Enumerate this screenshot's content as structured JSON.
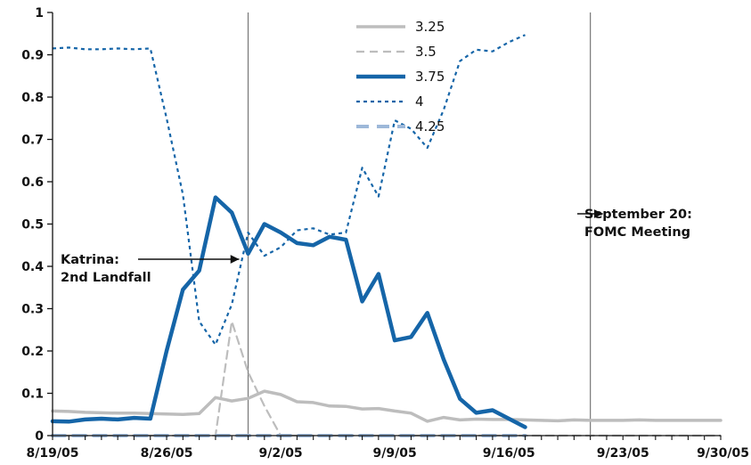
{
  "chart_data": {
    "type": "line",
    "title": "",
    "xlabel": "",
    "ylabel": "",
    "ylim": [
      0,
      1
    ],
    "xlim": [
      0,
      41
    ],
    "grid": false,
    "legend_position": "top-center",
    "y_ticks": [
      0,
      0.1,
      0.2,
      0.3,
      0.4,
      0.5,
      0.6,
      0.7,
      0.8,
      0.9,
      1
    ],
    "y_tick_labels": [
      "0",
      "0.1",
      "0.2",
      "0.3",
      "0.4",
      "0.5",
      "0.6",
      "0.7",
      "0.8",
      "0.9",
      "1"
    ],
    "x_tick_labels": [
      {
        "label": "8/19/05",
        "x": 0
      },
      {
        "label": "8/26/05",
        "x": 7
      },
      {
        "label": "9/2/05",
        "x": 14
      },
      {
        "label": "9/9/05",
        "x": 21
      },
      {
        "label": "9/16/05",
        "x": 28
      },
      {
        "label": "9/23/05",
        "x": 35
      },
      {
        "label": "9/30/05",
        "x": 42
      }
    ],
    "series": [
      {
        "name": "3.25",
        "color": "#bdbdbd",
        "style": "solid-thin",
        "points": [
          [
            0,
            0.058
          ],
          [
            1,
            0.057
          ],
          [
            2,
            0.055
          ],
          [
            3,
            0.054
          ],
          [
            4,
            0.053
          ],
          [
            5,
            0.053
          ],
          [
            6,
            0.052
          ],
          [
            7,
            0.051
          ],
          [
            8,
            0.05
          ],
          [
            9,
            0.052
          ],
          [
            10,
            0.09
          ],
          [
            11,
            0.082
          ],
          [
            12,
            0.088
          ],
          [
            13,
            0.105
          ],
          [
            14,
            0.097
          ],
          [
            15,
            0.08
          ],
          [
            16,
            0.078
          ],
          [
            17,
            0.07
          ],
          [
            18,
            0.069
          ],
          [
            19,
            0.063
          ],
          [
            20,
            0.064
          ],
          [
            21,
            0.058
          ],
          [
            22,
            0.053
          ],
          [
            23,
            0.034
          ],
          [
            24,
            0.043
          ],
          [
            25,
            0.037
          ],
          [
            26,
            0.039
          ],
          [
            27,
            0.038
          ],
          [
            28,
            0.038
          ],
          [
            29,
            0.037
          ],
          [
            30,
            0.036
          ],
          [
            31,
            0.035
          ],
          [
            32,
            0.037
          ],
          [
            33,
            0.036
          ],
          [
            34,
            0.036
          ],
          [
            35,
            0.036
          ],
          [
            36,
            0.037
          ],
          [
            37,
            0.036
          ],
          [
            38,
            0.036
          ],
          [
            39,
            0.036
          ],
          [
            40,
            0.036
          ],
          [
            41,
            0.036
          ]
        ]
      },
      {
        "name": "3.5",
        "color": "#bdbdbd",
        "style": "dashed-thin",
        "points": [
          [
            0,
            0
          ],
          [
            1,
            0
          ],
          [
            2,
            0
          ],
          [
            3,
            0
          ],
          [
            4,
            0
          ],
          [
            5,
            0
          ],
          [
            6,
            0
          ],
          [
            7,
            0
          ],
          [
            8,
            0
          ],
          [
            9,
            0
          ],
          [
            10,
            0
          ],
          [
            11,
            0.27
          ],
          [
            12,
            0.15
          ],
          [
            13,
            0.07
          ],
          [
            14,
            0
          ],
          [
            15,
            0
          ],
          [
            16,
            0
          ],
          [
            17,
            0
          ],
          [
            18,
            0
          ],
          [
            19,
            0
          ],
          [
            20,
            0
          ],
          [
            21,
            0
          ],
          [
            22,
            0
          ],
          [
            23,
            0
          ],
          [
            24,
            0
          ],
          [
            25,
            0
          ],
          [
            26,
            0
          ],
          [
            27,
            0
          ],
          [
            28,
            0
          ],
          [
            29,
            0
          ],
          [
            30,
            0
          ],
          [
            31,
            0
          ],
          [
            32,
            0
          ],
          [
            33,
            0
          ],
          [
            34,
            0
          ],
          [
            35,
            0
          ],
          [
            36,
            0
          ],
          [
            37,
            0
          ],
          [
            38,
            0
          ],
          [
            39,
            0
          ],
          [
            40,
            0
          ],
          [
            41,
            0
          ]
        ]
      },
      {
        "name": "3.75",
        "color": "#1565a8",
        "style": "solid-thick",
        "points": [
          [
            0,
            0.034
          ],
          [
            1,
            0.033
          ],
          [
            2,
            0.038
          ],
          [
            3,
            0.04
          ],
          [
            4,
            0.038
          ],
          [
            5,
            0.042
          ],
          [
            6,
            0.04
          ],
          [
            7,
            0.2
          ],
          [
            8,
            0.345
          ],
          [
            9,
            0.39
          ],
          [
            10,
            0.563
          ],
          [
            11,
            0.527
          ],
          [
            12,
            0.43
          ],
          [
            13,
            0.5
          ],
          [
            14,
            0.48
          ],
          [
            15,
            0.455
          ],
          [
            16,
            0.45
          ],
          [
            17,
            0.47
          ],
          [
            18,
            0.463
          ],
          [
            19,
            0.317
          ],
          [
            20,
            0.382
          ],
          [
            21,
            0.225
          ],
          [
            22,
            0.233
          ],
          [
            23,
            0.29
          ],
          [
            24,
            0.18
          ],
          [
            25,
            0.087
          ],
          [
            26,
            0.054
          ],
          [
            27,
            0.06
          ],
          [
            28,
            0.04
          ],
          [
            29,
            0.02
          ]
        ]
      },
      {
        "name": "4",
        "color": "#1565a8",
        "style": "dotted",
        "points": [
          [
            0,
            0.915
          ],
          [
            1,
            0.917
          ],
          [
            2,
            0.913
          ],
          [
            3,
            0.913
          ],
          [
            4,
            0.915
          ],
          [
            5,
            0.913
          ],
          [
            6,
            0.915
          ],
          [
            7,
            0.75
          ],
          [
            8,
            0.57
          ],
          [
            9,
            0.27
          ],
          [
            10,
            0.215
          ],
          [
            11,
            0.31
          ],
          [
            12,
            0.48
          ],
          [
            13,
            0.425
          ],
          [
            14,
            0.445
          ],
          [
            15,
            0.485
          ],
          [
            16,
            0.49
          ],
          [
            17,
            0.475
          ],
          [
            18,
            0.48
          ],
          [
            19,
            0.633
          ],
          [
            20,
            0.565
          ],
          [
            21,
            0.745
          ],
          [
            22,
            0.725
          ],
          [
            23,
            0.68
          ],
          [
            24,
            0.77
          ],
          [
            25,
            0.885
          ],
          [
            26,
            0.912
          ],
          [
            27,
            0.908
          ],
          [
            28,
            0.93
          ],
          [
            29,
            0.947
          ]
        ]
      },
      {
        "name": "4.25",
        "color": "#9db8d9",
        "style": "dashed-thick",
        "points": [
          [
            0,
            0
          ],
          [
            1,
            0
          ],
          [
            2,
            0
          ],
          [
            3,
            0
          ],
          [
            4,
            0
          ],
          [
            5,
            0
          ],
          [
            6,
            0
          ],
          [
            7,
            0
          ],
          [
            8,
            0
          ],
          [
            9,
            0
          ],
          [
            10,
            0
          ],
          [
            11,
            0
          ],
          [
            12,
            0
          ],
          [
            13,
            0
          ],
          [
            14,
            0
          ],
          [
            15,
            0
          ],
          [
            16,
            0
          ],
          [
            17,
            0
          ],
          [
            18,
            0
          ],
          [
            19,
            0
          ],
          [
            20,
            0
          ],
          [
            21,
            0
          ],
          [
            22,
            0
          ],
          [
            23,
            0
          ],
          [
            24,
            0
          ],
          [
            25,
            0
          ],
          [
            26,
            0
          ],
          [
            27,
            0
          ],
          [
            28,
            0
          ],
          [
            29,
            0
          ]
        ]
      }
    ],
    "events": [
      {
        "x": 12,
        "label_lines": [
          "Katrina:",
          "2nd Landfall"
        ]
      },
      {
        "x": 33,
        "label_lines": [
          "September 20:",
          "FOMC Meeting"
        ]
      }
    ]
  }
}
